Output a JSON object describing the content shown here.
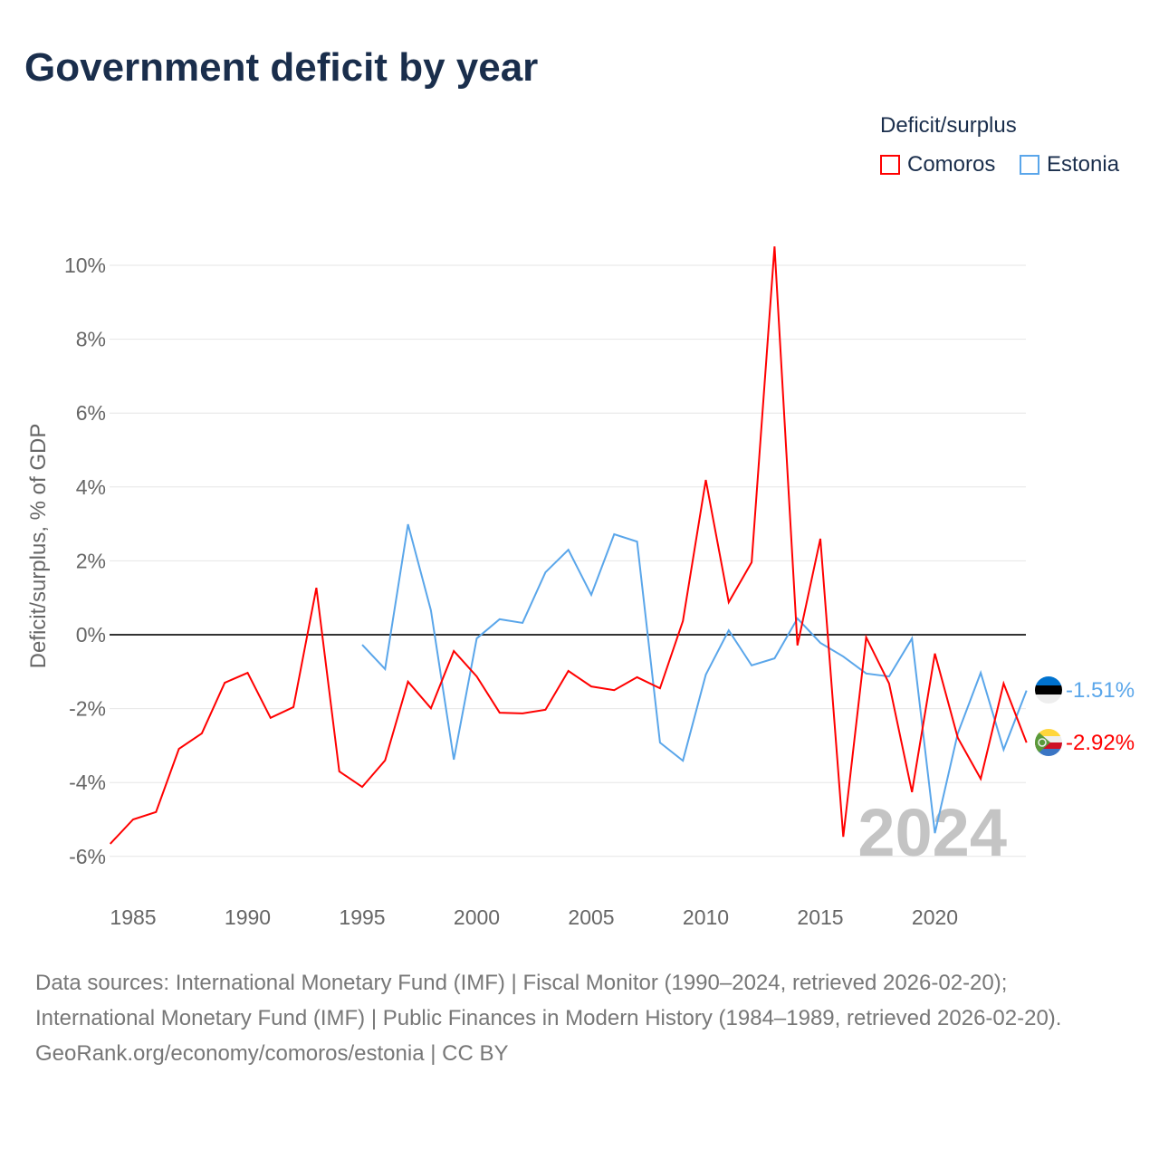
{
  "chart_data": {
    "type": "line",
    "title": "Government deficit by year",
    "ylabel": "Deficit/surplus, % of GDP",
    "xlabel": "",
    "ylim": [
      -7,
      10.6
    ],
    "xlim": [
      1984,
      2024
    ],
    "yticks": [
      -6,
      -4,
      -2,
      0,
      2,
      4,
      6,
      8,
      10
    ],
    "ytick_labels": [
      "-6%",
      "-4%",
      "-2%",
      "0%",
      "2%",
      "4%",
      "6%",
      "8%",
      "10%"
    ],
    "xticks": [
      1985,
      1990,
      1995,
      2000,
      2005,
      2010,
      2015,
      2020
    ],
    "xtick_labels": [
      "1985",
      "1990",
      "1995",
      "2000",
      "2005",
      "2010",
      "2015",
      "2020"
    ],
    "grid": true,
    "legend_title": "Deficit/surplus",
    "legend_position": "top-right",
    "year_watermark": "2024",
    "series": [
      {
        "name": "Comoros",
        "color": "#ff0000",
        "end_label": "-2.92%",
        "flag": "comoros-flag",
        "x": [
          1984,
          1985,
          1986,
          1987,
          1988,
          1989,
          1990,
          1991,
          1992,
          1993,
          1994,
          1995,
          1996,
          1997,
          1998,
          1999,
          2000,
          2001,
          2002,
          2003,
          2004,
          2005,
          2006,
          2007,
          2008,
          2009,
          2010,
          2011,
          2012,
          2013,
          2014,
          2015,
          2016,
          2017,
          2018,
          2019,
          2020,
          2021,
          2022,
          2023,
          2024
        ],
        "values": [
          -5.66,
          -5.0,
          -4.8,
          -3.09,
          -2.67,
          -1.3,
          -1.03,
          -2.25,
          -1.96,
          1.27,
          -3.7,
          -4.12,
          -3.4,
          -1.27,
          -1.99,
          -0.44,
          -1.13,
          -2.11,
          -2.13,
          -2.03,
          -0.98,
          -1.4,
          -1.5,
          -1.15,
          -1.45,
          0.37,
          4.19,
          0.88,
          1.96,
          10.51,
          -0.29,
          2.6,
          -5.47,
          -0.07,
          -1.32,
          -4.26,
          -0.51,
          -2.79,
          -3.9,
          -1.32,
          -2.92
        ]
      },
      {
        "name": "Estonia",
        "color": "#5aa6ea",
        "end_label": "-1.51%",
        "flag": "estonia-flag",
        "x": [
          1995,
          1996,
          1997,
          1998,
          1999,
          2000,
          2001,
          2002,
          2003,
          2004,
          2005,
          2006,
          2007,
          2008,
          2009,
          2010,
          2011,
          2012,
          2013,
          2014,
          2015,
          2016,
          2017,
          2018,
          2019,
          2020,
          2021,
          2022,
          2023,
          2024
        ],
        "values": [
          -0.27,
          -0.93,
          2.99,
          0.66,
          -3.38,
          -0.1,
          0.42,
          0.32,
          1.69,
          2.3,
          1.08,
          2.72,
          2.52,
          -2.92,
          -3.41,
          -1.08,
          0.12,
          -0.83,
          -0.64,
          0.44,
          -0.22,
          -0.59,
          -1.05,
          -1.13,
          -0.1,
          -5.37,
          -2.67,
          -1.03,
          -3.11,
          -1.51
        ]
      }
    ]
  },
  "footer": {
    "sources": "Data sources: International Monetary Fund (IMF) | Fiscal Monitor (1990–2024, retrieved 2026-02-20); International Monetary Fund (IMF) | Public Finances in Modern History (1984–1989, retrieved 2026-02-20).",
    "credit": "GeoRank.org/economy/comoros/estonia | CC BY"
  }
}
